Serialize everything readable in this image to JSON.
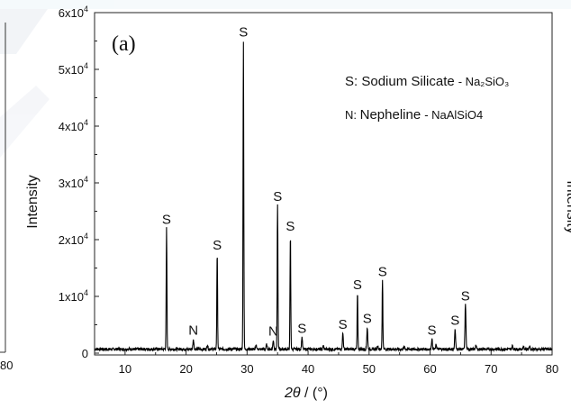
{
  "chart_data": {
    "type": "line",
    "panel_label": "(a)",
    "xlabel_var": "2θ",
    "xlabel_unit": " / (°)",
    "ylabel": "Intensity",
    "xlim": [
      5,
      80
    ],
    "ylim": [
      0,
      60000
    ],
    "x_ticks": [
      10,
      20,
      30,
      40,
      50,
      60,
      70,
      80
    ],
    "y_ticks": [
      {
        "value": 0,
        "mantissa": "0",
        "exp": ""
      },
      {
        "value": 10000,
        "mantissa": "1x10",
        "exp": "4"
      },
      {
        "value": 20000,
        "mantissa": "2x10",
        "exp": "4"
      },
      {
        "value": 30000,
        "mantissa": "3x10",
        "exp": "4"
      },
      {
        "value": 40000,
        "mantissa": "4x10",
        "exp": "4"
      },
      {
        "value": 50000,
        "mantissa": "5x10",
        "exp": "4"
      },
      {
        "value": 60000,
        "mantissa": "6x10",
        "exp": "4"
      }
    ],
    "baseline": 700,
    "legend": [
      {
        "key": "S: ",
        "name": "Sodium Silicate",
        "formula": "- Na₂SiO₃"
      },
      {
        "key": "N: ",
        "name": "Nepheline",
        "formula": "- NaAlSiO4"
      }
    ],
    "peaks": [
      {
        "x": 16.8,
        "y": 22000,
        "label": "S"
      },
      {
        "x": 21.2,
        "y": 2500,
        "label": "N"
      },
      {
        "x": 25.1,
        "y": 17500,
        "label": "S"
      },
      {
        "x": 29.4,
        "y": 55000,
        "label": "S"
      },
      {
        "x": 34.3,
        "y": 2300,
        "label": "N"
      },
      {
        "x": 35.0,
        "y": 26000,
        "label": "S"
      },
      {
        "x": 37.1,
        "y": 20800,
        "label": "S"
      },
      {
        "x": 39.0,
        "y": 2800,
        "label": "S"
      },
      {
        "x": 45.7,
        "y": 3500,
        "label": "S"
      },
      {
        "x": 48.1,
        "y": 10500,
        "label": "S"
      },
      {
        "x": 49.7,
        "y": 4500,
        "label": "S"
      },
      {
        "x": 52.2,
        "y": 12800,
        "label": "S"
      },
      {
        "x": 60.3,
        "y": 2500,
        "label": "S"
      },
      {
        "x": 64.1,
        "y": 4200,
        "label": "S"
      },
      {
        "x": 65.8,
        "y": 8500,
        "label": "S"
      }
    ],
    "minor_peaks": [
      {
        "x": 23.5,
        "y": 1500
      },
      {
        "x": 31.5,
        "y": 1400
      },
      {
        "x": 33.2,
        "y": 1500
      },
      {
        "x": 42.5,
        "y": 1300
      },
      {
        "x": 51.4,
        "y": 1400
      },
      {
        "x": 55.8,
        "y": 1200
      },
      {
        "x": 61.0,
        "y": 1500
      },
      {
        "x": 67.5,
        "y": 1400
      },
      {
        "x": 73.5,
        "y": 1300
      },
      {
        "x": 75.3,
        "y": 1200
      },
      {
        "x": 76.3,
        "y": 1300
      }
    ]
  }
}
